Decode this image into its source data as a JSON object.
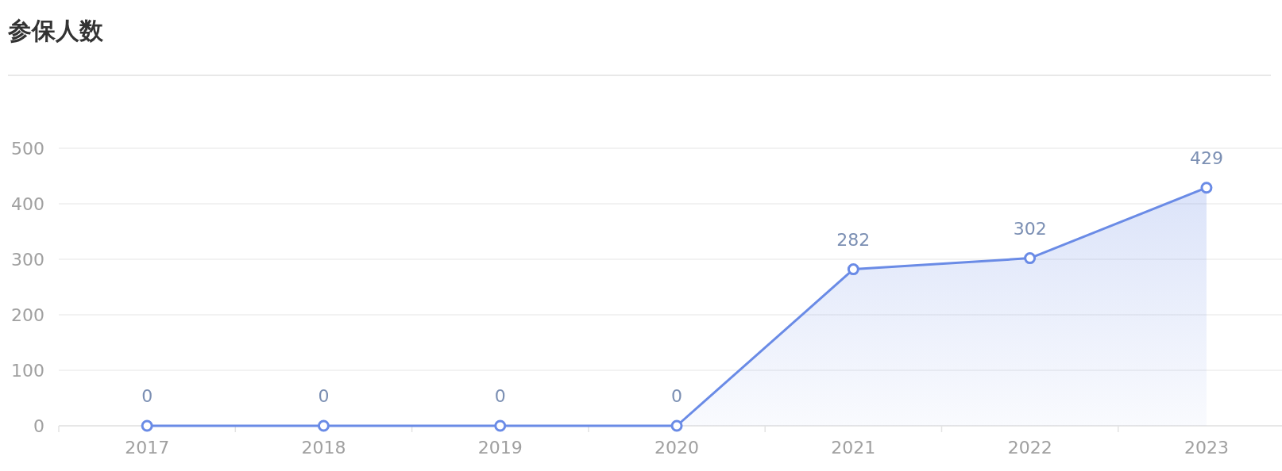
{
  "chart_data": {
    "type": "area",
    "title": "参保人数",
    "categories": [
      "2017",
      "2018",
      "2019",
      "2020",
      "2021",
      "2022",
      "2023"
    ],
    "values": [
      0,
      0,
      0,
      0,
      282,
      302,
      429
    ],
    "color": "#6a8be6",
    "ylim": [
      0,
      500
    ],
    "yticks": [
      0,
      100,
      200,
      300,
      400,
      500
    ],
    "grid": "y",
    "marker": "circle",
    "data_labels": true
  }
}
